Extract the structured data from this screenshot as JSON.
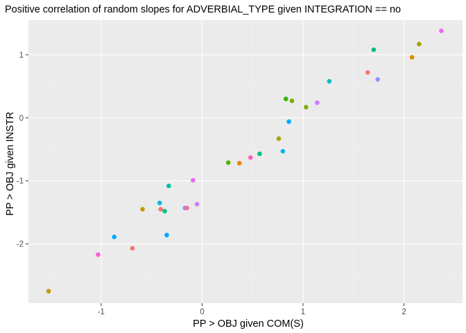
{
  "chart_data": {
    "type": "scatter",
    "title": "Positive correlation of random slopes for ADVERBIAL_TYPE given INTEGRATION == no",
    "xlabel": "PP > OBJ given COM(S)",
    "ylabel": "PP > OBJ given INSTR",
    "xlim": [
      -1.72,
      2.58
    ],
    "ylim": [
      -2.94,
      1.55
    ],
    "x_ticks": [
      -1,
      0,
      1,
      2
    ],
    "x_tick_labels": [
      "-1",
      "0",
      "1",
      "2"
    ],
    "y_ticks": [
      -2,
      -1,
      0,
      1
    ],
    "y_tick_labels": [
      "-2",
      "-1",
      "0",
      "1"
    ],
    "x_minor_ticks": [
      -1.5,
      -0.5,
      0.5,
      1.5,
      2.5
    ],
    "y_minor_ticks": [
      -2.5,
      -1.5,
      -0.5,
      0.5,
      1.5
    ],
    "grid": true,
    "legend": "none",
    "colors": {
      "panel_background": "#ebebeb",
      "grid_major": "#ffffff",
      "grid_minor": "#f5f5f5"
    },
    "points": [
      {
        "x": -1.52,
        "y": -2.75,
        "color": "#c49a00"
      },
      {
        "x": -1.03,
        "y": -2.17,
        "color": "#fb61d7"
      },
      {
        "x": -0.87,
        "y": -1.89,
        "color": "#00a9ff"
      },
      {
        "x": -0.69,
        "y": -2.07,
        "color": "#f8766d"
      },
      {
        "x": -0.59,
        "y": -1.45,
        "color": "#c49a00"
      },
      {
        "x": -0.42,
        "y": -1.35,
        "color": "#00b8e7"
      },
      {
        "x": -0.41,
        "y": -1.45,
        "color": "#f8766d"
      },
      {
        "x": -0.37,
        "y": -1.48,
        "color": "#00c08b"
      },
      {
        "x": -0.35,
        "y": -1.86,
        "color": "#00a9ff"
      },
      {
        "x": -0.33,
        "y": -1.08,
        "color": "#00c19a"
      },
      {
        "x": -0.17,
        "y": -1.43,
        "color": "#8494ff"
      },
      {
        "x": -0.15,
        "y": -1.43,
        "color": "#ff6c91"
      },
      {
        "x": -0.09,
        "y": -0.99,
        "color": "#e76bf3"
      },
      {
        "x": -0.05,
        "y": -1.37,
        "color": "#c77cff"
      },
      {
        "x": 0.26,
        "y": -0.71,
        "color": "#53b400"
      },
      {
        "x": 0.37,
        "y": -0.72,
        "color": "#e58700"
      },
      {
        "x": 0.48,
        "y": -0.63,
        "color": "#ff61c3"
      },
      {
        "x": 0.57,
        "y": -0.57,
        "color": "#00c08b"
      },
      {
        "x": 0.76,
        "y": -0.33,
        "color": "#a3a500"
      },
      {
        "x": 0.8,
        "y": -0.53,
        "color": "#00b4f0"
      },
      {
        "x": 0.83,
        "y": 0.3,
        "color": "#39b600"
      },
      {
        "x": 0.86,
        "y": -0.06,
        "color": "#00a9ff"
      },
      {
        "x": 0.89,
        "y": 0.27,
        "color": "#7cae00"
      },
      {
        "x": 1.03,
        "y": 0.17,
        "color": "#7cae00"
      },
      {
        "x": 1.14,
        "y": 0.24,
        "color": "#c77cff"
      },
      {
        "x": 1.26,
        "y": 0.58,
        "color": "#00bfc4"
      },
      {
        "x": 1.64,
        "y": 0.72,
        "color": "#f8766d"
      },
      {
        "x": 1.7,
        "y": 1.08,
        "color": "#00bf7d"
      },
      {
        "x": 1.74,
        "y": 0.61,
        "color": "#9590ff"
      },
      {
        "x": 2.08,
        "y": 0.96,
        "color": "#d89000"
      },
      {
        "x": 2.15,
        "y": 1.17,
        "color": "#a3a500"
      },
      {
        "x": 2.37,
        "y": 1.38,
        "color": "#e76bf3"
      }
    ]
  }
}
